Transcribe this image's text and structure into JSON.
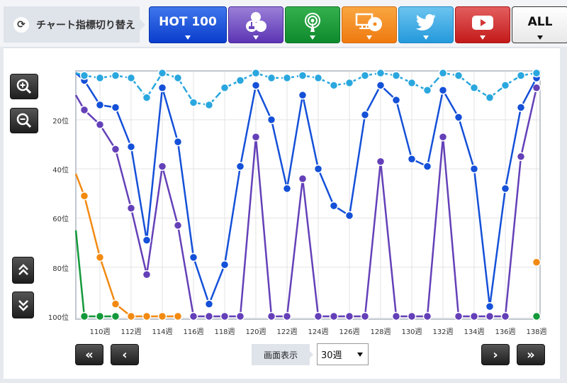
{
  "header": {
    "switch_label": "チャート指標切り替え",
    "switch_icon": "refresh-icon",
    "tabs": [
      {
        "id": "hot100",
        "label": "HOT 100",
        "icon": null,
        "color": "#1e54dc"
      },
      {
        "id": "sales",
        "label": "",
        "icon": "cd-download-icon",
        "color": "#7a5bc8"
      },
      {
        "id": "radio",
        "label": "",
        "icon": "radio-tower-icon",
        "color": "#1f9e3e"
      },
      {
        "id": "pc-lookup",
        "label": "",
        "icon": "pc-cd-icon",
        "color": "#f28c22"
      },
      {
        "id": "twitter",
        "label": "",
        "icon": "twitter-bird-icon",
        "color": "#42aee6"
      },
      {
        "id": "youtube",
        "label": "",
        "icon": "youtube-play-icon",
        "color": "#d33535"
      },
      {
        "id": "all",
        "label": "ALL",
        "icon": null,
        "color": "#ffffff"
      }
    ]
  },
  "controls": {
    "zoom_in": "zoom-in-icon",
    "zoom_out": "zoom-out-icon",
    "scroll_up": "double-chevron-up-icon",
    "scroll_down": "double-chevron-down-icon",
    "first": "«",
    "prev": "‹",
    "next": "›",
    "last": "»",
    "display_label": "画面表示",
    "display_value": "30週"
  },
  "chart_data": {
    "type": "line",
    "title": "",
    "xlabel": "",
    "ylabel": "",
    "y_inverted": true,
    "ylim": [
      1,
      100
    ],
    "y_ticks": [
      "20位",
      "40位",
      "60位",
      "80位",
      "100位"
    ],
    "x_tick_labels": [
      "110週",
      "112週",
      "114週",
      "116週",
      "118週",
      "120週",
      "122週",
      "124週",
      "126週",
      "128週",
      "130週",
      "132週",
      "134週",
      "136週",
      "138週"
    ],
    "x": [
      109,
      110,
      111,
      112,
      113,
      114,
      115,
      116,
      117,
      118,
      119,
      120,
      121,
      122,
      123,
      124,
      125,
      126,
      127,
      128,
      129,
      130,
      131,
      132,
      133,
      134,
      135,
      136,
      137,
      138
    ],
    "grid": true,
    "legend": null,
    "series": [
      {
        "name": "Twitter",
        "color": "#2aa7de",
        "values": [
          2,
          3,
          2,
          3,
          11,
          1,
          3,
          13,
          14,
          7,
          4,
          1,
          3,
          3,
          2,
          3,
          6,
          5,
          2,
          1,
          2,
          5,
          8,
          1,
          2,
          7,
          11,
          6,
          2,
          1
        ]
      },
      {
        "name": "HOT 100",
        "color": "#1450d8",
        "values": [
          4,
          14,
          15,
          31,
          69,
          7,
          29,
          76,
          95,
          79,
          39,
          6,
          20,
          48,
          10,
          40,
          55,
          59,
          18,
          6,
          12,
          36,
          39,
          8,
          19,
          40,
          96,
          48,
          15,
          3
        ]
      },
      {
        "name": "Sales",
        "color": "#6440b8",
        "values": [
          16,
          22,
          32,
          56,
          83,
          39,
          63,
          100,
          100,
          100,
          100,
          27,
          100,
          100,
          44,
          100,
          100,
          100,
          100,
          37,
          100,
          100,
          100,
          27,
          100,
          100,
          100,
          100,
          35,
          7
        ]
      },
      {
        "name": "PC Lookup",
        "color": "#f28a12",
        "values": [
          51,
          76,
          95,
          100,
          100,
          100,
          100,
          null,
          null,
          null,
          null,
          null,
          null,
          null,
          null,
          null,
          null,
          null,
          null,
          null,
          null,
          null,
          null,
          null,
          null,
          null,
          null,
          null,
          null,
          78
        ]
      },
      {
        "name": "Radio",
        "color": "#13993a",
        "values": [
          100,
          100,
          100,
          null,
          null,
          null,
          null,
          100,
          null,
          100,
          null,
          null,
          100,
          null,
          null,
          null,
          null,
          null,
          null,
          null,
          100,
          null,
          null,
          null,
          null,
          null,
          null,
          null,
          null,
          100
        ]
      }
    ],
    "offchart_left": {
      "Twitter": 1,
      "HOT 100": 1,
      "Sales": 10,
      "PC Lookup": 42,
      "Radio": 65
    }
  }
}
